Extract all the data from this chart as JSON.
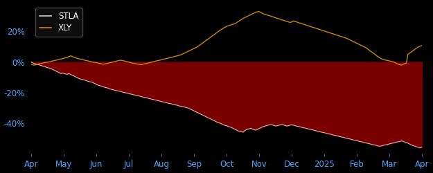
{
  "background_color": "#000000",
  "plot_bg_color": "#000000",
  "fill_color": "#7a0000",
  "stla_color": "#cccccc",
  "xly_color": "#cc8800",
  "stla_label": "STLA",
  "xly_label": "XLY",
  "yticks": [
    -0.4,
    -0.2,
    0.0,
    0.2
  ],
  "ytick_labels": [
    "-40%",
    "-20%",
    "0%",
    "20%"
  ],
  "xtick_labels": [
    "Apr",
    "May",
    "Jun",
    "Jul",
    "Aug",
    "Sep",
    "Oct",
    "Nov",
    "Dec",
    "2025",
    "Feb",
    "Mar",
    "Apr"
  ],
  "ylim": [
    -0.6,
    0.38
  ],
  "tick_color": "#4da6ff",
  "legend_text_color": "#ffffff",
  "stla_data": [
    0.0,
    -0.005,
    -0.01,
    -0.012,
    -0.015,
    -0.018,
    -0.022,
    -0.025,
    -0.028,
    -0.03,
    -0.035,
    -0.038,
    -0.04,
    -0.045,
    -0.05,
    -0.055,
    -0.06,
    -0.065,
    -0.07,
    -0.075,
    -0.072,
    -0.075,
    -0.078,
    -0.08,
    -0.075,
    -0.08,
    -0.085,
    -0.09,
    -0.095,
    -0.1,
    -0.105,
    -0.11,
    -0.112,
    -0.115,
    -0.118,
    -0.12,
    -0.125,
    -0.128,
    -0.13,
    -0.132,
    -0.138,
    -0.142,
    -0.148,
    -0.152,
    -0.155,
    -0.158,
    -0.162,
    -0.165,
    -0.168,
    -0.17,
    -0.175,
    -0.178,
    -0.18,
    -0.183,
    -0.185,
    -0.188,
    -0.19,
    -0.192,
    -0.195,
    -0.198,
    -0.2,
    -0.203,
    -0.205,
    -0.208,
    -0.21,
    -0.213,
    -0.215,
    -0.218,
    -0.22,
    -0.222,
    -0.225,
    -0.228,
    -0.23,
    -0.232,
    -0.235,
    -0.238,
    -0.24,
    -0.243,
    -0.245,
    -0.248,
    -0.25,
    -0.252,
    -0.255,
    -0.258,
    -0.26,
    -0.262,
    -0.265,
    -0.268,
    -0.27,
    -0.272,
    -0.275,
    -0.278,
    -0.28,
    -0.282,
    -0.285,
    -0.288,
    -0.29,
    -0.292,
    -0.295,
    -0.298,
    -0.3,
    -0.305,
    -0.31,
    -0.315,
    -0.32,
    -0.325,
    -0.33,
    -0.335,
    -0.34,
    -0.345,
    -0.35,
    -0.355,
    -0.36,
    -0.365,
    -0.37,
    -0.375,
    -0.38,
    -0.385,
    -0.39,
    -0.395,
    -0.398,
    -0.402,
    -0.408,
    -0.412,
    -0.415,
    -0.418,
    -0.422,
    -0.425,
    -0.43,
    -0.435,
    -0.44,
    -0.445,
    -0.45,
    -0.453,
    -0.455,
    -0.458,
    -0.448,
    -0.442,
    -0.438,
    -0.435,
    -0.432,
    -0.438,
    -0.442,
    -0.445,
    -0.44,
    -0.435,
    -0.43,
    -0.425,
    -0.422,
    -0.418,
    -0.415,
    -0.412,
    -0.41,
    -0.408,
    -0.412,
    -0.415,
    -0.418,
    -0.415,
    -0.412,
    -0.41,
    -0.408,
    -0.412,
    -0.415,
    -0.418,
    -0.415,
    -0.412,
    -0.41,
    -0.412,
    -0.415,
    -0.418,
    -0.42,
    -0.422,
    -0.425,
    -0.428,
    -0.43,
    -0.432,
    -0.435,
    -0.438,
    -0.44,
    -0.442,
    -0.445,
    -0.448,
    -0.45,
    -0.452,
    -0.455,
    -0.458,
    -0.46,
    -0.462,
    -0.465,
    -0.468,
    -0.47,
    -0.472,
    -0.475,
    -0.478,
    -0.48,
    -0.482,
    -0.485,
    -0.488,
    -0.49,
    -0.492,
    -0.495,
    -0.498,
    -0.5,
    -0.502,
    -0.505,
    -0.508,
    -0.51,
    -0.512,
    -0.515,
    -0.518,
    -0.52,
    -0.522,
    -0.525,
    -0.528,
    -0.53,
    -0.532,
    -0.535,
    -0.538,
    -0.54,
    -0.542,
    -0.545,
    -0.548,
    -0.55,
    -0.548,
    -0.545,
    -0.542,
    -0.54,
    -0.538,
    -0.535,
    -0.532,
    -0.53,
    -0.528,
    -0.525,
    -0.522,
    -0.52,
    -0.518,
    -0.515,
    -0.518,
    -0.522,
    -0.525,
    -0.53,
    -0.535,
    -0.54,
    -0.545,
    -0.548,
    -0.552,
    -0.555,
    -0.558,
    -0.56,
    -0.555
  ],
  "xly_data": [
    -0.015,
    -0.018,
    -0.02,
    -0.018,
    -0.015,
    -0.012,
    -0.01,
    -0.008,
    -0.005,
    -0.003,
    -0.002,
    0.0,
    0.002,
    0.005,
    0.008,
    0.01,
    0.012,
    0.015,
    0.018,
    0.02,
    0.022,
    0.025,
    0.028,
    0.03,
    0.035,
    0.04,
    0.038,
    0.032,
    0.028,
    0.025,
    0.022,
    0.02,
    0.018,
    0.015,
    0.012,
    0.01,
    0.008,
    0.005,
    0.003,
    0.0,
    -0.002,
    -0.003,
    -0.005,
    -0.008,
    -0.01,
    -0.012,
    -0.015,
    -0.012,
    -0.01,
    -0.008,
    -0.005,
    -0.003,
    0.0,
    0.002,
    0.005,
    0.008,
    0.01,
    0.012,
    0.01,
    0.008,
    0.005,
    0.003,
    0.0,
    -0.002,
    -0.005,
    -0.008,
    -0.01,
    -0.012,
    -0.014,
    -0.016,
    -0.018,
    -0.015,
    -0.012,
    -0.01,
    -0.008,
    -0.005,
    -0.003,
    0.0,
    0.002,
    0.005,
    0.008,
    0.01,
    0.012,
    0.015,
    0.018,
    0.02,
    0.022,
    0.025,
    0.028,
    0.03,
    0.032,
    0.035,
    0.038,
    0.04,
    0.043,
    0.046,
    0.05,
    0.055,
    0.06,
    0.065,
    0.07,
    0.075,
    0.08,
    0.085,
    0.09,
    0.095,
    0.1,
    0.108,
    0.115,
    0.122,
    0.13,
    0.138,
    0.145,
    0.152,
    0.16,
    0.168,
    0.175,
    0.182,
    0.19,
    0.198,
    0.205,
    0.212,
    0.218,
    0.225,
    0.23,
    0.235,
    0.238,
    0.242,
    0.245,
    0.248,
    0.252,
    0.258,
    0.265,
    0.272,
    0.278,
    0.285,
    0.29,
    0.295,
    0.3,
    0.305,
    0.31,
    0.315,
    0.32,
    0.325,
    0.328,
    0.33,
    0.325,
    0.32,
    0.315,
    0.31,
    0.308,
    0.305,
    0.302,
    0.298,
    0.295,
    0.292,
    0.288,
    0.285,
    0.282,
    0.278,
    0.275,
    0.272,
    0.268,
    0.265,
    0.262,
    0.258,
    0.262,
    0.268,
    0.265,
    0.262,
    0.258,
    0.255,
    0.252,
    0.248,
    0.245,
    0.242,
    0.238,
    0.235,
    0.232,
    0.228,
    0.225,
    0.222,
    0.218,
    0.215,
    0.212,
    0.208,
    0.205,
    0.202,
    0.198,
    0.195,
    0.192,
    0.188,
    0.185,
    0.182,
    0.178,
    0.175,
    0.172,
    0.168,
    0.165,
    0.162,
    0.158,
    0.155,
    0.15,
    0.145,
    0.14,
    0.135,
    0.13,
    0.125,
    0.12,
    0.115,
    0.11,
    0.105,
    0.1,
    0.095,
    0.088,
    0.08,
    0.072,
    0.065,
    0.058,
    0.05,
    0.042,
    0.035,
    0.028,
    0.022,
    0.018,
    0.015,
    0.012,
    0.01,
    0.008,
    0.005,
    0.003,
    0.0,
    -0.005,
    -0.01,
    -0.015,
    -0.018,
    -0.02,
    -0.015,
    -0.01,
    -0.008,
    0.05,
    0.058,
    0.065,
    0.072,
    0.08,
    0.088,
    0.095,
    0.1,
    0.105,
    0.108,
    0.112,
    0.115,
    0.112,
    0.108,
    0.105,
    0.102,
    0.098,
    0.095,
    0.092,
    0.088,
    0.085,
    0.082,
    0.078,
    0.075,
    0.072,
    0.068,
    0.065,
    0.062,
    0.058,
    0.055
  ]
}
